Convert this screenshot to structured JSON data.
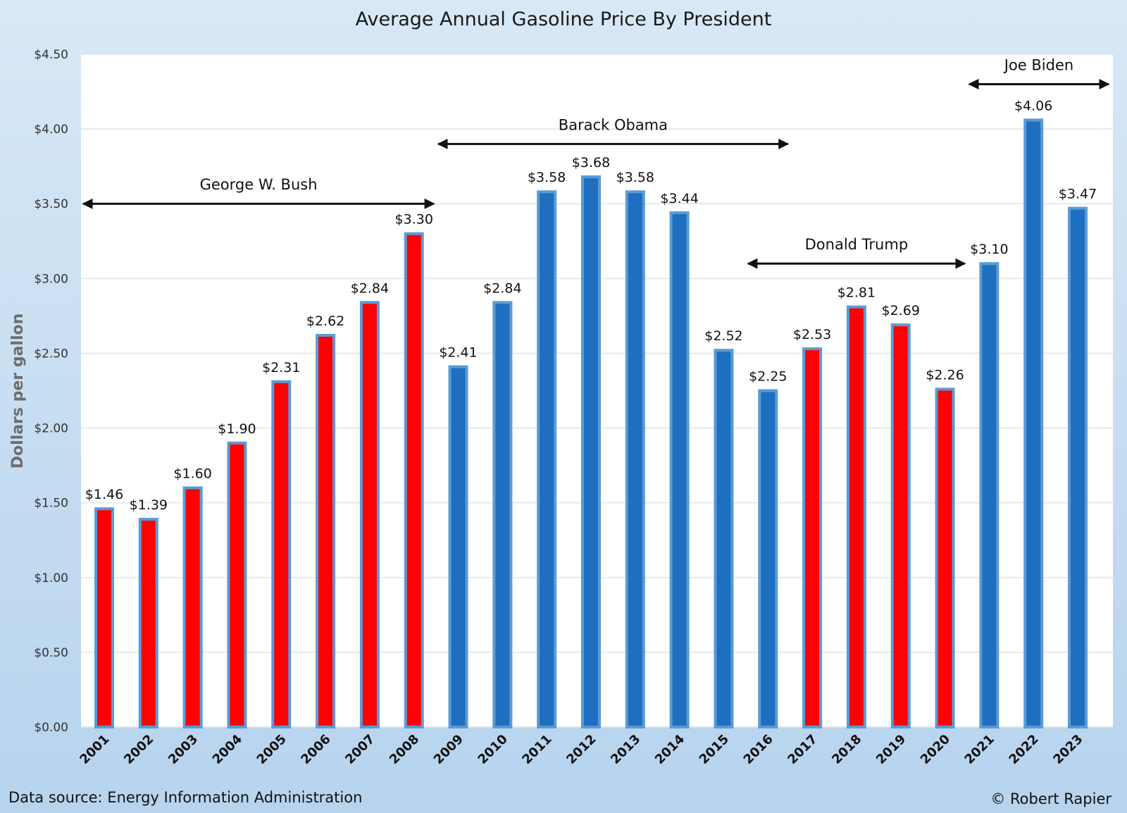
{
  "chart_data": {
    "type": "bar",
    "title": "Average Annual Gasoline Price By President",
    "ylabel": "Dollars per gallon",
    "xlabel": "",
    "ylim": [
      0,
      4.5
    ],
    "ytick_labels": [
      "$0.00",
      "$0.50",
      "$1.00",
      "$1.50",
      "$2.00",
      "$2.50",
      "$3.00",
      "$3.50",
      "$4.00",
      "$4.50"
    ],
    "ytick_values": [
      0,
      0.5,
      1.0,
      1.5,
      2.0,
      2.5,
      3.0,
      3.5,
      4.0,
      4.5
    ],
    "grid": true,
    "categories": [
      "2001",
      "2002",
      "2003",
      "2004",
      "2005",
      "2006",
      "2007",
      "2008",
      "2009",
      "2010",
      "2011",
      "2012",
      "2013",
      "2014",
      "2015",
      "2016",
      "2017",
      "2018",
      "2019",
      "2020",
      "2021",
      "2022",
      "2023"
    ],
    "values": [
      1.46,
      1.39,
      1.6,
      1.9,
      2.31,
      2.62,
      2.84,
      3.3,
      2.41,
      2.84,
      3.58,
      3.68,
      3.58,
      3.44,
      2.52,
      2.25,
      2.53,
      2.81,
      2.69,
      2.26,
      3.1,
      4.06,
      3.47
    ],
    "data_labels": [
      "$1.46",
      "$1.39",
      "$1.60",
      "$1.90",
      "$2.31",
      "$2.62",
      "$2.84",
      "$3.30",
      "$2.41",
      "$2.84",
      "$3.58",
      "$3.68",
      "$3.58",
      "$3.44",
      "$2.52",
      "$2.25",
      "$2.53",
      "$2.81",
      "$2.69",
      "$2.26",
      "$3.10",
      "$4.06",
      "$3.47"
    ],
    "bar_party": [
      "red",
      "red",
      "red",
      "red",
      "red",
      "red",
      "red",
      "red",
      "blue",
      "blue",
      "blue",
      "blue",
      "blue",
      "blue",
      "blue",
      "blue",
      "red",
      "red",
      "red",
      "red",
      "blue",
      "blue",
      "blue"
    ],
    "colors": {
      "red": "#ff0000",
      "blue": "#1f6fc0",
      "red_edge": "#5b9bd5",
      "blue_edge": "#5b9bd5",
      "grid": "#e3e3e3",
      "plot_bg": "#ffffff"
    },
    "annotations": [
      {
        "label": "George W. Bush",
        "start_year": "2001",
        "end_year": "2008",
        "level": 3.5
      },
      {
        "label": "Barack Obama",
        "start_year": "2009",
        "end_year": "2016",
        "level": 3.9
      },
      {
        "label": "Donald Trump",
        "start_year": "2016",
        "end_year": "2020",
        "level": 3.1
      },
      {
        "label": "Joe Biden",
        "start_year": "2021",
        "end_year": "2023",
        "level": 4.3
      }
    ]
  },
  "footer": {
    "source": "Data source: Energy Information Administration",
    "credit": "© Robert Rapier"
  }
}
